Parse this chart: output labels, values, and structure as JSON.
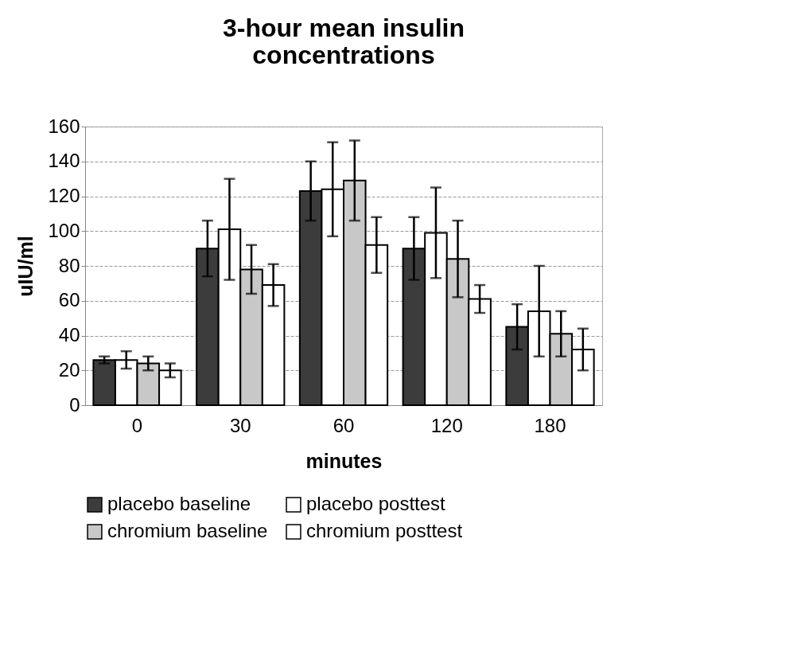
{
  "chart_data": {
    "type": "bar",
    "title": "3-hour mean insulin concentrations",
    "xlabel": "minutes",
    "ylabel": "uIU/ml",
    "categories": [
      "0",
      "30",
      "60",
      "120",
      "180"
    ],
    "series": [
      {
        "name": "placebo baseline",
        "color": "#3c3c3c",
        "values": [
          26,
          90,
          123,
          90,
          45
        ],
        "errors": [
          2,
          16,
          17,
          18,
          13
        ]
      },
      {
        "name": "placebo posttest",
        "color": "#ffffff",
        "values": [
          26,
          101,
          124,
          99,
          54
        ],
        "errors": [
          5,
          29,
          27,
          26,
          26
        ]
      },
      {
        "name": "chromium baseline",
        "color": "#c8c8c8",
        "values": [
          24,
          78,
          129,
          84,
          41
        ],
        "errors": [
          4,
          14,
          23,
          22,
          13
        ]
      },
      {
        "name": "chromium posttest",
        "color": "#ffffff",
        "values": [
          20,
          69,
          92,
          61,
          32
        ],
        "errors": [
          4,
          12,
          16,
          8,
          12
        ]
      }
    ],
    "ylim": [
      0,
      160
    ],
    "yticks": [
      0,
      20,
      40,
      60,
      80,
      100,
      120,
      140,
      160
    ],
    "grid": "y",
    "legend": "bottom"
  }
}
